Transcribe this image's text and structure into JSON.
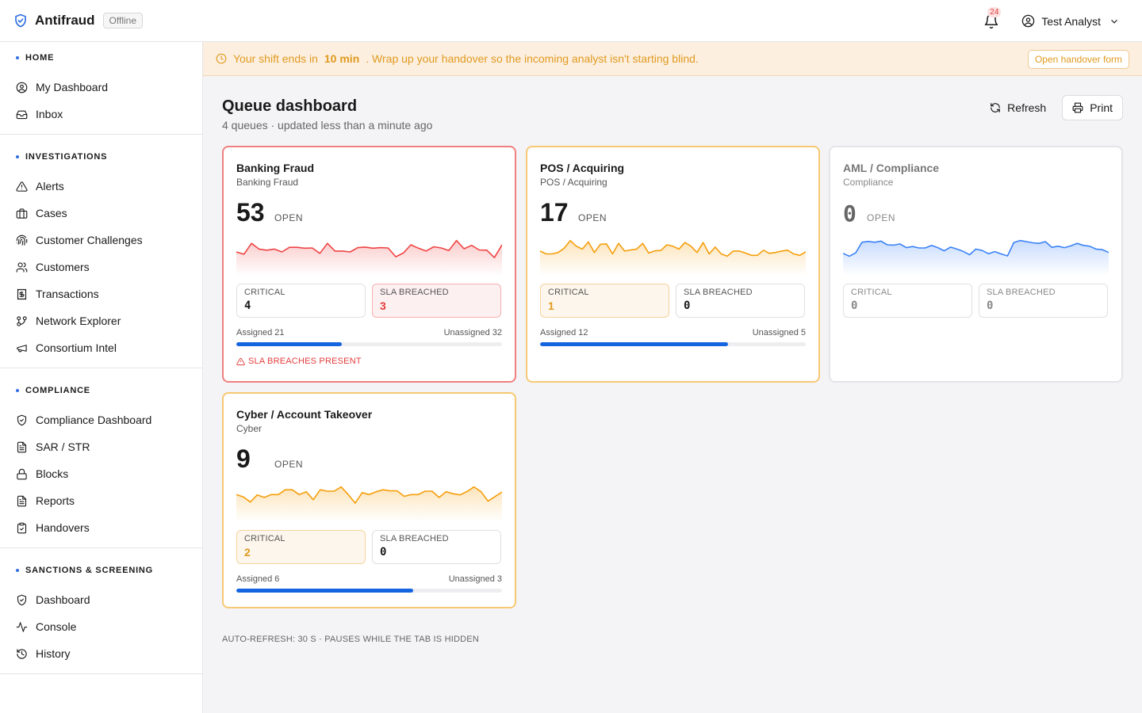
{
  "app": {
    "name": "Antifraud",
    "status": "Offline",
    "notifications_count": "24",
    "user_name": "Test Analyst"
  },
  "sidebar": {
    "sections": [
      {
        "title": "HOME",
        "items": [
          {
            "label": "My Dashboard",
            "icon": "user-circle-icon"
          },
          {
            "label": "Inbox",
            "icon": "inbox-icon"
          }
        ]
      },
      {
        "title": "INVESTIGATIONS",
        "items": [
          {
            "label": "Alerts",
            "icon": "alert-triangle-icon"
          },
          {
            "label": "Cases",
            "icon": "briefcase-icon"
          },
          {
            "label": "Customer Challenges",
            "icon": "fingerprint-icon"
          },
          {
            "label": "Customers",
            "icon": "users-icon"
          },
          {
            "label": "Transactions",
            "icon": "receipt-icon"
          },
          {
            "label": "Network Explorer",
            "icon": "git-branch-icon"
          },
          {
            "label": "Consortium Intel",
            "icon": "megaphone-icon"
          }
        ]
      },
      {
        "title": "COMPLIANCE",
        "items": [
          {
            "label": "Compliance Dashboard",
            "icon": "shield-check-icon"
          },
          {
            "label": "SAR / STR",
            "icon": "file-text-icon"
          },
          {
            "label": "Blocks",
            "icon": "lock-icon"
          },
          {
            "label": "Reports",
            "icon": "file-text-icon"
          },
          {
            "label": "Handovers",
            "icon": "clipboard-check-icon"
          }
        ]
      },
      {
        "title": "SANCTIONS & SCREENING",
        "items": [
          {
            "label": "Dashboard",
            "icon": "shield-check-icon"
          },
          {
            "label": "Console",
            "icon": "activity-icon"
          },
          {
            "label": "History",
            "icon": "history-icon"
          }
        ]
      }
    ]
  },
  "banner": {
    "text_before": "Your shift ends in",
    "time": "10 min",
    "text_after": ". Wrap up your handover so the incoming analyst isn't starting blind.",
    "button_label": "Open handover form"
  },
  "page": {
    "title": "Queue dashboard",
    "subtitle": "4 queues · updated less than a minute ago",
    "refresh_label": "Refresh",
    "print_label": "Print",
    "footer_note": "AUTO-REFRESH: 30 S · PAUSES WHILE THE TAB IS HIDDEN"
  },
  "queues": [
    {
      "title": "Banking Fraud",
      "subtitle": "Banking Fraud",
      "open_count": "53",
      "open_label": "OPEN",
      "critical_label": "CRITICAL",
      "critical": "4",
      "sla_label": "SLA BREACHED",
      "sla_breached": "3",
      "assigned": "Assigned 21",
      "unassigned": "Unassigned 32",
      "assigned_ratio": 0.396,
      "warning": "SLA BREACHES PRESENT",
      "color": "#ef4444",
      "trend": [
        5,
        4.2,
        8,
        6,
        5.6,
        6,
        5,
        6.6,
        6.6,
        6.3,
        6.4,
        4.5,
        8,
        5.3,
        5.3,
        5,
        6.5,
        6.7,
        6.3,
        6.5,
        6.4,
        3.3,
        4.6,
        7.5,
        6.3,
        5.3,
        6.8,
        6.4,
        5.5,
        9,
        6.1,
        7.3,
        5.7,
        5.6,
        3,
        7.5
      ]
    },
    {
      "title": "POS / Acquiring",
      "subtitle": "POS / Acquiring",
      "open_count": "17",
      "open_label": "OPEN",
      "critical_label": "CRITICAL",
      "critical": "1",
      "sla_label": "SLA BREACHED",
      "sla_breached": "0",
      "assigned": "Assigned 12",
      "unassigned": "Unassigned 5",
      "assigned_ratio": 0.706,
      "warning": "",
      "color": "#f59e0b",
      "trend": [
        5.3,
        4.3,
        4.3,
        4.8,
        6.3,
        9,
        7,
        6,
        8.5,
        4.8,
        7.7,
        7.8,
        4.3,
        8,
        5.3,
        5.7,
        6,
        8,
        4.6,
        5.4,
        5.5,
        7.5,
        7,
        6,
        8.3,
        7,
        4.8,
        8.3,
        4.3,
        6.7,
        4.3,
        3.5,
        5.3,
        5.3,
        4.6,
        3.8,
        3.8,
        5.6,
        4.5,
        4.8,
        5.3,
        5.6,
        4.3,
        3.8,
        5
      ]
    },
    {
      "title": "AML / Compliance",
      "subtitle": "Compliance",
      "open_count": "0",
      "open_label": "OPEN",
      "critical_label": "CRITICAL",
      "critical": "0",
      "sla_label": "SLA BREACHED",
      "sla_breached": "0",
      "assigned": "",
      "unassigned": "",
      "assigned_ratio": null,
      "warning": "",
      "color": "#3b82f6",
      "trend": [
        4.5,
        3.5,
        4.7,
        8.4,
        8.7,
        8.4,
        8.8,
        7.5,
        7.4,
        7.8,
        6.5,
        6.9,
        6.4,
        6.4,
        7.3,
        6.5,
        5.4,
        6.7,
        6,
        5.2,
        4,
        6,
        5.5,
        4.4,
        5.1,
        4.3,
        3.6,
        8.3,
        9,
        8.6,
        8.2,
        8,
        8.6,
        6.6,
        7,
        6.5,
        7.1,
        8,
        7.3,
        7,
        6,
        5.8,
        4.8
      ]
    },
    {
      "title": "Cyber / Account Takeover",
      "subtitle": "Cyber",
      "open_count": "9",
      "open_label": "OPEN",
      "critical_label": "CRITICAL",
      "critical": "2",
      "sla_label": "SLA BREACHED",
      "sla_breached": "0",
      "assigned": "Assigned 6",
      "unassigned": "Unassigned 3",
      "assigned_ratio": 0.667,
      "warning": "",
      "color": "#f59e0b",
      "trend": [
        6.3,
        5.5,
        3.7,
        6.2,
        5.3,
        6.3,
        6.3,
        8,
        8,
        6.3,
        7.3,
        4.5,
        8,
        7.5,
        7.5,
        9,
        6.3,
        3.3,
        7,
        6.3,
        7.3,
        8,
        7.6,
        7.6,
        5.7,
        6.3,
        6.3,
        7.5,
        7.5,
        5.3,
        7.3,
        6.6,
        6.2,
        7.4,
        9,
        7.3,
        4,
        5.6,
        7.2
      ]
    }
  ]
}
